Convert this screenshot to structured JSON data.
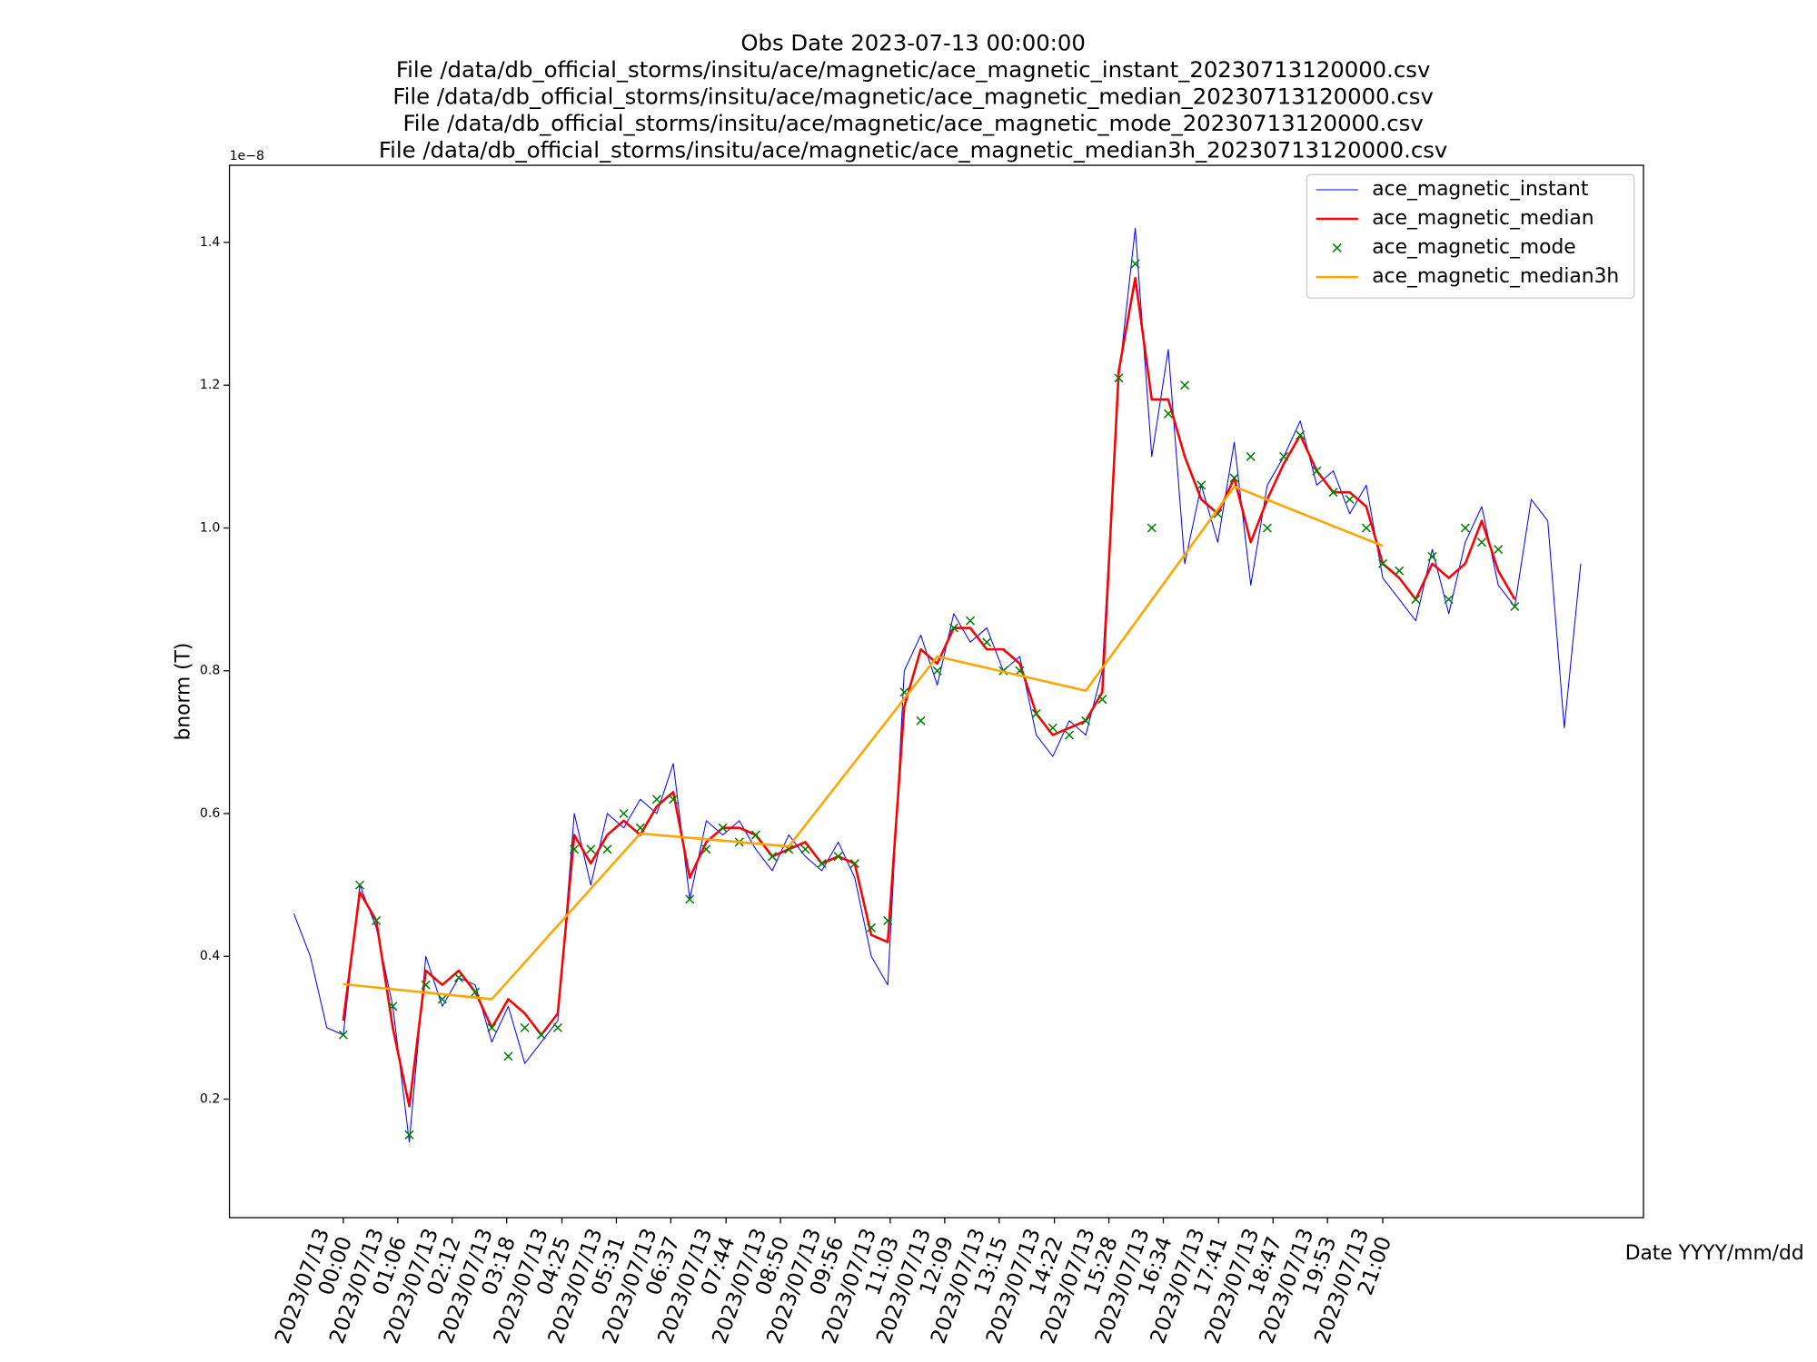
{
  "chart_data": {
    "type": "line",
    "title": [
      "Obs Date 2023-07-13 00:00:00",
      "File /data/db_official_storms/insitu/ace/magnetic/ace_magnetic_instant_20230713120000.csv",
      "File /data/db_official_storms/insitu/ace/magnetic/ace_magnetic_median_20230713120000.csv",
      "File /data/db_official_storms/insitu/ace/magnetic/ace_magnetic_mode_20230713120000.csv",
      "File /data/db_official_storms/insitu/ace/magnetic/ace_magnetic_median3h_20230713120000.csv"
    ],
    "xlabel": "Date YYYY/mm/dd",
    "ylabel": "bnorm (T)",
    "y_offset_label": "1e−8",
    "legend": "upper right",
    "xlim": [
      "2023-07-12 21:42",
      "2023-07-14 02:16"
    ],
    "xticks": [
      {
        "value": "2023-07-13 00:00",
        "label": "2023/07/13\n00:00"
      },
      {
        "value": "2023-07-13 01:06",
        "label": "2023/07/13\n01:06"
      },
      {
        "value": "2023-07-13 02:12",
        "label": "2023/07/13\n02:12"
      },
      {
        "value": "2023-07-13 03:18",
        "label": "2023/07/13\n03:18"
      },
      {
        "value": "2023-07-13 04:25",
        "label": "2023/07/13\n04:25"
      },
      {
        "value": "2023-07-13 05:31",
        "label": "2023/07/13\n05:31"
      },
      {
        "value": "2023-07-13 06:37",
        "label": "2023/07/13\n06:37"
      },
      {
        "value": "2023-07-13 07:44",
        "label": "2023/07/13\n07:44"
      },
      {
        "value": "2023-07-13 08:50",
        "label": "2023/07/13\n08:50"
      },
      {
        "value": "2023-07-13 09:56",
        "label": "2023/07/13\n09:56"
      },
      {
        "value": "2023-07-13 11:03",
        "label": "2023/07/13\n11:03"
      },
      {
        "value": "2023-07-13 12:09",
        "label": "2023/07/13\n12:09"
      },
      {
        "value": "2023-07-13 13:15",
        "label": "2023/07/13\n13:15"
      },
      {
        "value": "2023-07-13 14:22",
        "label": "2023/07/13\n14:22"
      },
      {
        "value": "2023-07-13 15:28",
        "label": "2023/07/13\n15:28"
      },
      {
        "value": "2023-07-13 16:34",
        "label": "2023/07/13\n16:34"
      },
      {
        "value": "2023-07-13 17:41",
        "label": "2023/07/13\n17:41"
      },
      {
        "value": "2023-07-13 18:47",
        "label": "2023/07/13\n18:47"
      },
      {
        "value": "2023-07-13 19:53",
        "label": "2023/07/13\n19:53"
      },
      {
        "value": "2023-07-13 21:00",
        "label": "2023/07/13\n21:00"
      }
    ],
    "ylim": [
      3.4e-10,
      1.508e-08
    ],
    "yticks": [
      {
        "value": 2e-09,
        "label": "0.2"
      },
      {
        "value": 4e-09,
        "label": "0.4"
      },
      {
        "value": 6e-09,
        "label": "0.6"
      },
      {
        "value": 8e-09,
        "label": "0.8"
      },
      {
        "value": 1e-08,
        "label": "1.0"
      },
      {
        "value": 1.2e-08,
        "label": "1.2"
      },
      {
        "value": 1.4e-08,
        "label": "1.4"
      }
    ],
    "x": [
      "2023-07-12 23:00",
      "2023-07-12 23:20",
      "2023-07-12 23:40",
      "2023-07-13 00:00",
      "2023-07-13 00:20",
      "2023-07-13 00:40",
      "2023-07-13 01:00",
      "2023-07-13 01:20",
      "2023-07-13 01:40",
      "2023-07-13 02:00",
      "2023-07-13 02:20",
      "2023-07-13 02:40",
      "2023-07-13 03:00",
      "2023-07-13 03:20",
      "2023-07-13 03:40",
      "2023-07-13 04:00",
      "2023-07-13 04:20",
      "2023-07-13 04:40",
      "2023-07-13 05:00",
      "2023-07-13 05:20",
      "2023-07-13 05:40",
      "2023-07-13 06:00",
      "2023-07-13 06:20",
      "2023-07-13 06:40",
      "2023-07-13 07:00",
      "2023-07-13 07:20",
      "2023-07-13 07:40",
      "2023-07-13 08:00",
      "2023-07-13 08:20",
      "2023-07-13 08:40",
      "2023-07-13 09:00",
      "2023-07-13 09:20",
      "2023-07-13 09:40",
      "2023-07-13 10:00",
      "2023-07-13 10:20",
      "2023-07-13 10:40",
      "2023-07-13 11:00",
      "2023-07-13 11:20",
      "2023-07-13 11:40",
      "2023-07-13 12:00",
      "2023-07-13 12:20",
      "2023-07-13 12:40",
      "2023-07-13 13:00",
      "2023-07-13 13:20",
      "2023-07-13 13:40",
      "2023-07-13 14:00",
      "2023-07-13 14:20",
      "2023-07-13 14:40",
      "2023-07-13 15:00",
      "2023-07-13 15:20",
      "2023-07-13 15:40",
      "2023-07-13 16:00",
      "2023-07-13 16:20",
      "2023-07-13 16:40",
      "2023-07-13 17:00",
      "2023-07-13 17:20",
      "2023-07-13 17:40",
      "2023-07-13 18:00",
      "2023-07-13 18:20",
      "2023-07-13 18:40",
      "2023-07-13 19:00",
      "2023-07-13 19:20",
      "2023-07-13 19:40",
      "2023-07-13 20:00",
      "2023-07-13 20:20",
      "2023-07-13 20:40",
      "2023-07-13 21:00",
      "2023-07-13 21:20",
      "2023-07-13 21:40",
      "2023-07-13 22:00",
      "2023-07-13 22:20",
      "2023-07-13 22:40",
      "2023-07-13 23:00",
      "2023-07-13 23:20",
      "2023-07-13 23:40",
      "2023-07-14 00:00",
      "2023-07-14 00:20",
      "2023-07-14 00:40",
      "2023-07-14 01:00"
    ],
    "series": [
      {
        "name": "ace_magnetic_instant",
        "color": "#0000ff",
        "style": "line",
        "linewidth": 0.8,
        "values": [
          4.6e-09,
          4e-09,
          3e-09,
          2.9e-09,
          5e-09,
          4.4e-09,
          3.3e-09,
          1.4e-09,
          4e-09,
          3.3e-09,
          3.7e-09,
          3.6e-09,
          2.8e-09,
          3.3e-09,
          2.5e-09,
          2.8e-09,
          3.1e-09,
          6e-09,
          5e-09,
          6e-09,
          5.8e-09,
          6.2e-09,
          6e-09,
          6.7e-09,
          4.8e-09,
          5.9e-09,
          5.7e-09,
          5.9e-09,
          5.5e-09,
          5.2e-09,
          5.7e-09,
          5.4e-09,
          5.2e-09,
          5.6e-09,
          5.1e-09,
          4e-09,
          3.6e-09,
          8e-09,
          8.5e-09,
          7.8e-09,
          8.8e-09,
          8.4e-09,
          8.6e-09,
          8e-09,
          8.2e-09,
          7.1e-09,
          6.8e-09,
          7.3e-09,
          7.1e-09,
          8e-09,
          1.21e-08,
          1.42e-08,
          1.1e-08,
          1.25e-08,
          9.5e-09,
          1.06e-08,
          9.8e-09,
          1.12e-08,
          9.2e-09,
          1.06e-08,
          1.1e-08,
          1.15e-08,
          1.06e-08,
          1.08e-08,
          1.02e-08,
          1.06e-08,
          9.3e-09,
          9e-09,
          8.7e-09,
          9.7e-09,
          8.8e-09,
          9.8e-09,
          1.03e-08,
          9.2e-09,
          8.9e-09,
          1.04e-08,
          1.01e-08,
          7.2e-09,
          9.5e-09
        ]
      },
      {
        "name": "ace_magnetic_median",
        "color": "#ff0000",
        "style": "line",
        "linewidth": 2,
        "values": [
          null,
          null,
          null,
          3.1e-09,
          4.9e-09,
          4.5e-09,
          3e-09,
          1.9e-09,
          3.8e-09,
          3.6e-09,
          3.8e-09,
          3.5e-09,
          3e-09,
          3.4e-09,
          3.2e-09,
          2.9e-09,
          3.2e-09,
          5.7e-09,
          5.3e-09,
          5.7e-09,
          5.9e-09,
          5.7e-09,
          6.1e-09,
          6.3e-09,
          5.1e-09,
          5.6e-09,
          5.8e-09,
          5.8e-09,
          5.7e-09,
          5.4e-09,
          5.5e-09,
          5.6e-09,
          5.3e-09,
          5.4e-09,
          5.3e-09,
          4.3e-09,
          4.2e-09,
          7.5e-09,
          8.3e-09,
          8.1e-09,
          8.6e-09,
          8.6e-09,
          8.3e-09,
          8.3e-09,
          8.1e-09,
          7.4e-09,
          7.1e-09,
          7.2e-09,
          7.3e-09,
          7.7e-09,
          1.22e-08,
          1.35e-08,
          1.18e-08,
          1.18e-08,
          1.1e-08,
          1.04e-08,
          1.02e-08,
          1.07e-08,
          9.8e-09,
          1.04e-08,
          1.09e-08,
          1.13e-08,
          1.08e-08,
          1.05e-08,
          1.05e-08,
          1.03e-08,
          9.5e-09,
          9.3e-09,
          9e-09,
          9.5e-09,
          9.3e-09,
          9.5e-09,
          1.01e-08,
          9.4e-09,
          9e-09,
          null,
          null,
          null,
          null
        ]
      },
      {
        "name": "ace_magnetic_mode",
        "color": "#008000",
        "style": "scatter",
        "values": [
          null,
          null,
          null,
          2.9e-09,
          5e-09,
          4.5e-09,
          3.3e-09,
          1.5e-09,
          3.6e-09,
          3.4e-09,
          3.7e-09,
          3.5e-09,
          3e-09,
          2.6e-09,
          3e-09,
          2.9e-09,
          3e-09,
          5.5e-09,
          5.5e-09,
          5.5e-09,
          6e-09,
          5.8e-09,
          6.2e-09,
          6.2e-09,
          4.8e-09,
          5.5e-09,
          5.8e-09,
          5.6e-09,
          5.7e-09,
          5.4e-09,
          5.5e-09,
          5.5e-09,
          5.3e-09,
          5.4e-09,
          5.3e-09,
          4.4e-09,
          4.5e-09,
          7.7e-09,
          7.3e-09,
          8e-09,
          8.6e-09,
          8.7e-09,
          8.4e-09,
          8e-09,
          8e-09,
          7.4e-09,
          7.2e-09,
          7.1e-09,
          7.3e-09,
          7.6e-09,
          1.21e-08,
          1.37e-08,
          1e-08,
          1.16e-08,
          1.2e-08,
          1.06e-08,
          1.02e-08,
          1.07e-08,
          1.1e-08,
          1e-08,
          1.1e-08,
          1.13e-08,
          1.08e-08,
          1.05e-08,
          1.04e-08,
          1e-08,
          9.5e-09,
          9.4e-09,
          9e-09,
          9.6e-09,
          9e-09,
          1e-08,
          9.8e-09,
          9.7e-09,
          8.9e-09,
          null,
          null,
          null,
          null
        ]
      },
      {
        "name": "ace_magnetic_median3h",
        "color": "#ffa500",
        "style": "line",
        "linewidth": 2,
        "x": [
          "2023-07-13 00:00",
          "2023-07-13 03:00",
          "2023-07-13 06:00",
          "2023-07-13 09:00",
          "2023-07-13 12:00",
          "2023-07-13 15:00",
          "2023-07-13 18:00",
          "2023-07-13 21:00"
        ],
        "values": [
          3.61e-09,
          3.4e-09,
          5.72e-09,
          5.54e-09,
          8.2e-09,
          7.72e-09,
          1.058e-08,
          9.75e-09
        ]
      }
    ]
  }
}
